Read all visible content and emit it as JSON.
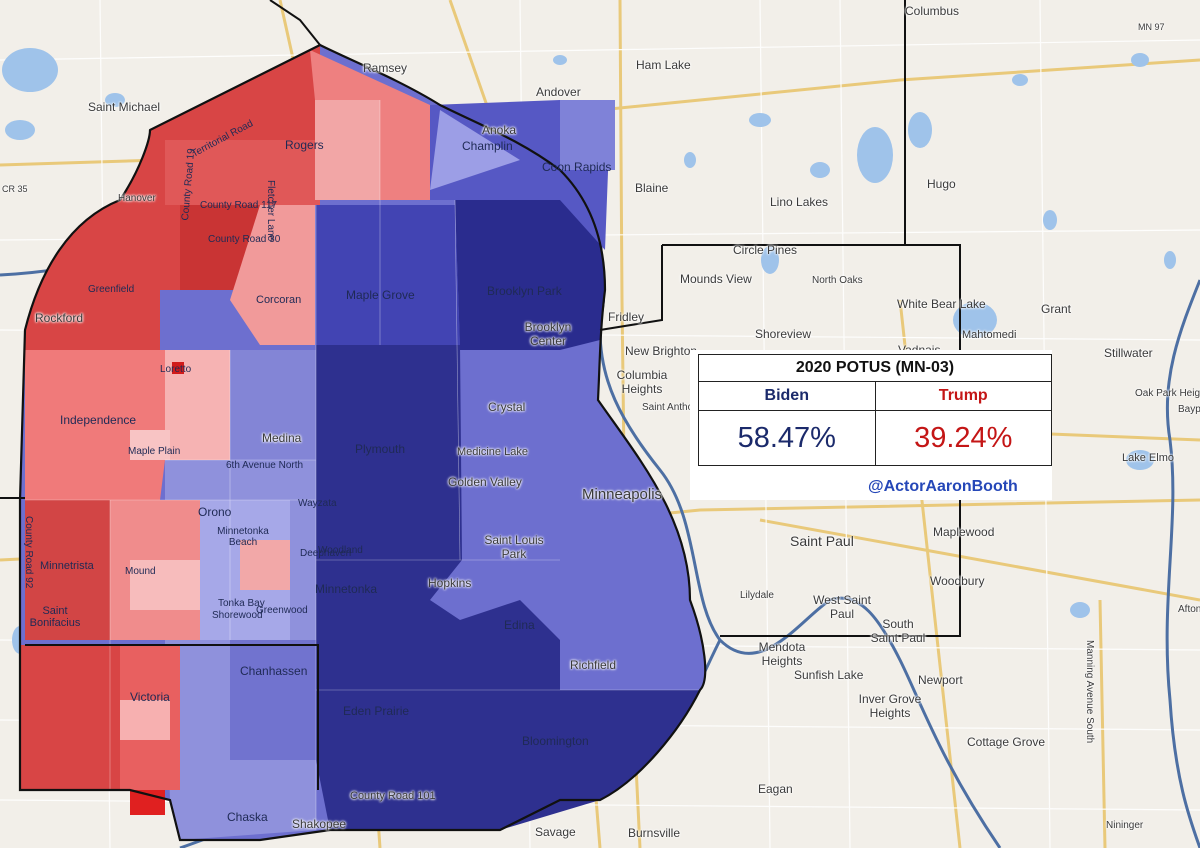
{
  "legend": {
    "title": "2020 POTUS (MN-03)",
    "candidate_a": {
      "name": "Biden",
      "percent": "58.47%",
      "color": "#1b2a6b"
    },
    "candidate_b": {
      "name": "Trump",
      "percent": "39.24%",
      "color": "#c41616"
    },
    "credit": "@ActorAaronBooth"
  },
  "colors": {
    "base_map": "#f2efe9",
    "water": "#9fc3ea",
    "road": "#e9c97a",
    "boundary": "#111111",
    "dem_strong": "#2a2c8e",
    "rep_strong": "#d83a3a"
  },
  "places": [
    "Columbus",
    "MN 97",
    "Ham Lake",
    "Ramsey",
    "Andover",
    "Saint Michael",
    "Anoka",
    "Champlin",
    "Coon Rapids",
    "Rogers",
    "Blaine",
    "Lino Lakes",
    "Hugo",
    "Hanover",
    "County Road 117",
    "County Road 30",
    "Circle Pines",
    "Greenfield",
    "Corcoran",
    "Maple Grove",
    "Brooklyn Park",
    "Mounds View",
    "North Oaks",
    "White Bear Lake",
    "Grant",
    "Mahtomedi",
    "Rockford",
    "Fridley",
    "Shoreview",
    "Vadnais",
    "Brooklyn Center",
    "New Brighton",
    "Stillwater",
    "Loretto",
    "Columbia Heights",
    "Independence",
    "Crystal",
    "Saint Anthony",
    "Oak Park Heights",
    "Bayport",
    "Medina",
    "Maple Plain",
    "Plymouth",
    "Medicine Lake",
    "Lake Elmo",
    "6th Avenue North",
    "Golden Valley",
    "Orono",
    "Minneapolis",
    "Wayzata",
    "Woodland",
    "Saint Louis Park",
    "Saint Paul",
    "Maplewood",
    "Minnetonka Beach",
    "Minnetrista",
    "Mound",
    "Deephaven",
    "Hopkins",
    "Woodbury",
    "Minnetonka",
    "Tonka Bay",
    "Greenwood",
    "Shorewood",
    "Saint Bonifacius",
    "Lilydale",
    "West Saint Paul",
    "South Saint Paul",
    "Edina",
    "Mendota Heights",
    "Manning Avenue South",
    "Richfield",
    "Chanhassen",
    "Victoria",
    "Sunfish Lake",
    "Eden Prairie",
    "Newport",
    "Inver Grove Heights",
    "Bloomington",
    "Cottage Grove",
    "Eagan",
    "Chaska",
    "Shakopee",
    "County Road 101",
    "Savage",
    "Burnsville",
    "Nininger",
    "Territorial Road",
    "Fletcher Lane",
    "County Road 19",
    "Afton",
    "County Road 92",
    "CR 35"
  ]
}
